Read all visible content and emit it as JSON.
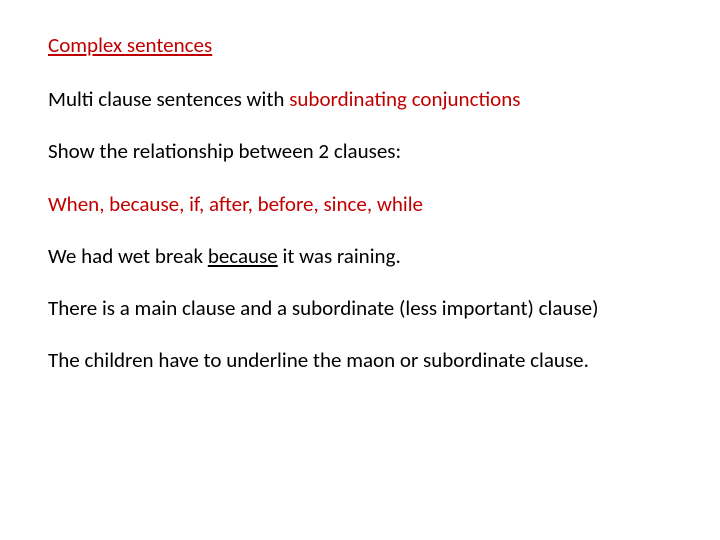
{
  "title": "Complex sentences",
  "line2_a": "Multi clause sentences with ",
  "line2_b": "subordinating conjunctions",
  "line3": "Show the relationship between 2 clauses:",
  "line4": "When, because, if, after, before, since, while",
  "line5_a": "We had wet break ",
  "line5_b": "because",
  "line5_c": " it was raining.",
  "line6": "There is a main clause and a subordinate (less important) clause)",
  "line7": "The children have to underline the maon or subordinate clause.",
  "colors": {
    "red": "#c00000",
    "text": "#000000",
    "background": "#ffffff"
  },
  "font_size_pt": 21
}
